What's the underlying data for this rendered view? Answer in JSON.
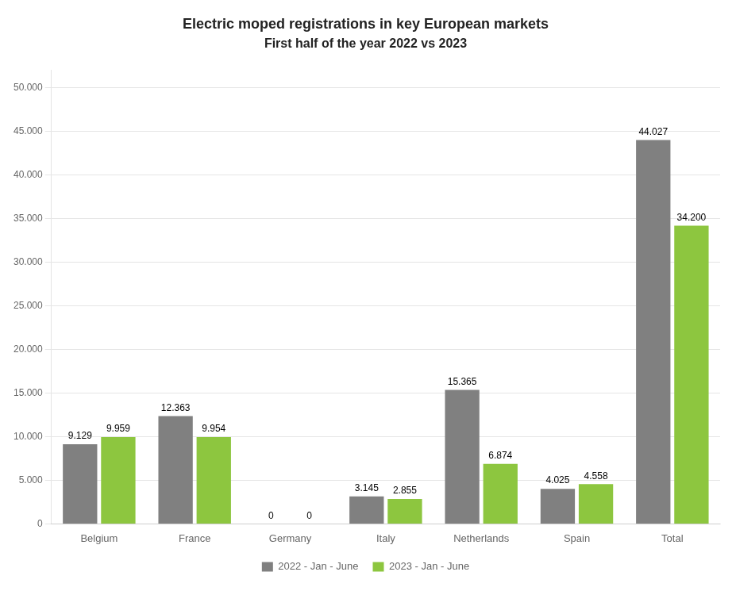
{
  "chart_data": {
    "type": "bar",
    "title": "Electric moped registrations in key European markets",
    "subtitle": "First half of the year 2022 vs 2023",
    "categories": [
      "Belgium",
      "France",
      "Germany",
      "Italy",
      "Netherlands",
      "Spain",
      "Total"
    ],
    "series": [
      {
        "name": "2022 - Jan - June",
        "color": "#808080",
        "values": [
          9129,
          12363,
          0,
          3145,
          15365,
          4025,
          44027
        ],
        "value_labels": [
          "9.129",
          "12.363",
          "0",
          "3.145",
          "15.365",
          "4.025",
          "44.027"
        ]
      },
      {
        "name": "2023 - Jan - June",
        "color": "#8dc63f",
        "values": [
          9959,
          9954,
          0,
          2855,
          6874,
          4558,
          34200
        ],
        "value_labels": [
          "9.959",
          "9.954",
          "0",
          "2.855",
          "6.874",
          "4.558",
          "34.200"
        ]
      }
    ],
    "ylim": [
      0,
      52000
    ],
    "yticks": [
      0,
      {
        "value": 5000,
        "label": "5.000"
      },
      {
        "value": 10000,
        "label": "10.000"
      },
      {
        "value": 15000,
        "label": "15.000"
      },
      {
        "value": 20000,
        "label": "20.000"
      },
      {
        "value": 25000,
        "label": "25.000"
      },
      {
        "value": 30000,
        "label": "30.000"
      },
      {
        "value": 35000,
        "label": "35.000"
      },
      {
        "value": 40000,
        "label": "40.000"
      },
      {
        "value": 45000,
        "label": "45.000"
      },
      {
        "value": 50000,
        "label": "50.000"
      }
    ],
    "grid": true,
    "legend": "bottom",
    "data_labels": true
  }
}
